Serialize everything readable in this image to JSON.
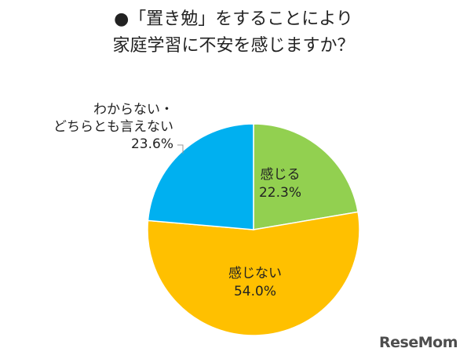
{
  "chart_data": {
    "type": "pie",
    "title_lines": [
      "●「置き勉」をすることにより",
      "家庭学習に不安を感じますか？"
    ],
    "slices": [
      {
        "label": "感じる",
        "value": 22.3,
        "value_text": "22.3%",
        "color": "#92d050"
      },
      {
        "label": "感じない",
        "value": 54.0,
        "value_text": "54.0%",
        "color": "#ffc000"
      },
      {
        "label_lines": [
          "わからない・",
          "どちらとも言えない"
        ],
        "value": 23.6,
        "value_text": "23.6%",
        "color": "#00b0f0"
      }
    ],
    "start": "top",
    "direction": "clockwise",
    "legend": "none"
  },
  "watermark": "ReseMom"
}
